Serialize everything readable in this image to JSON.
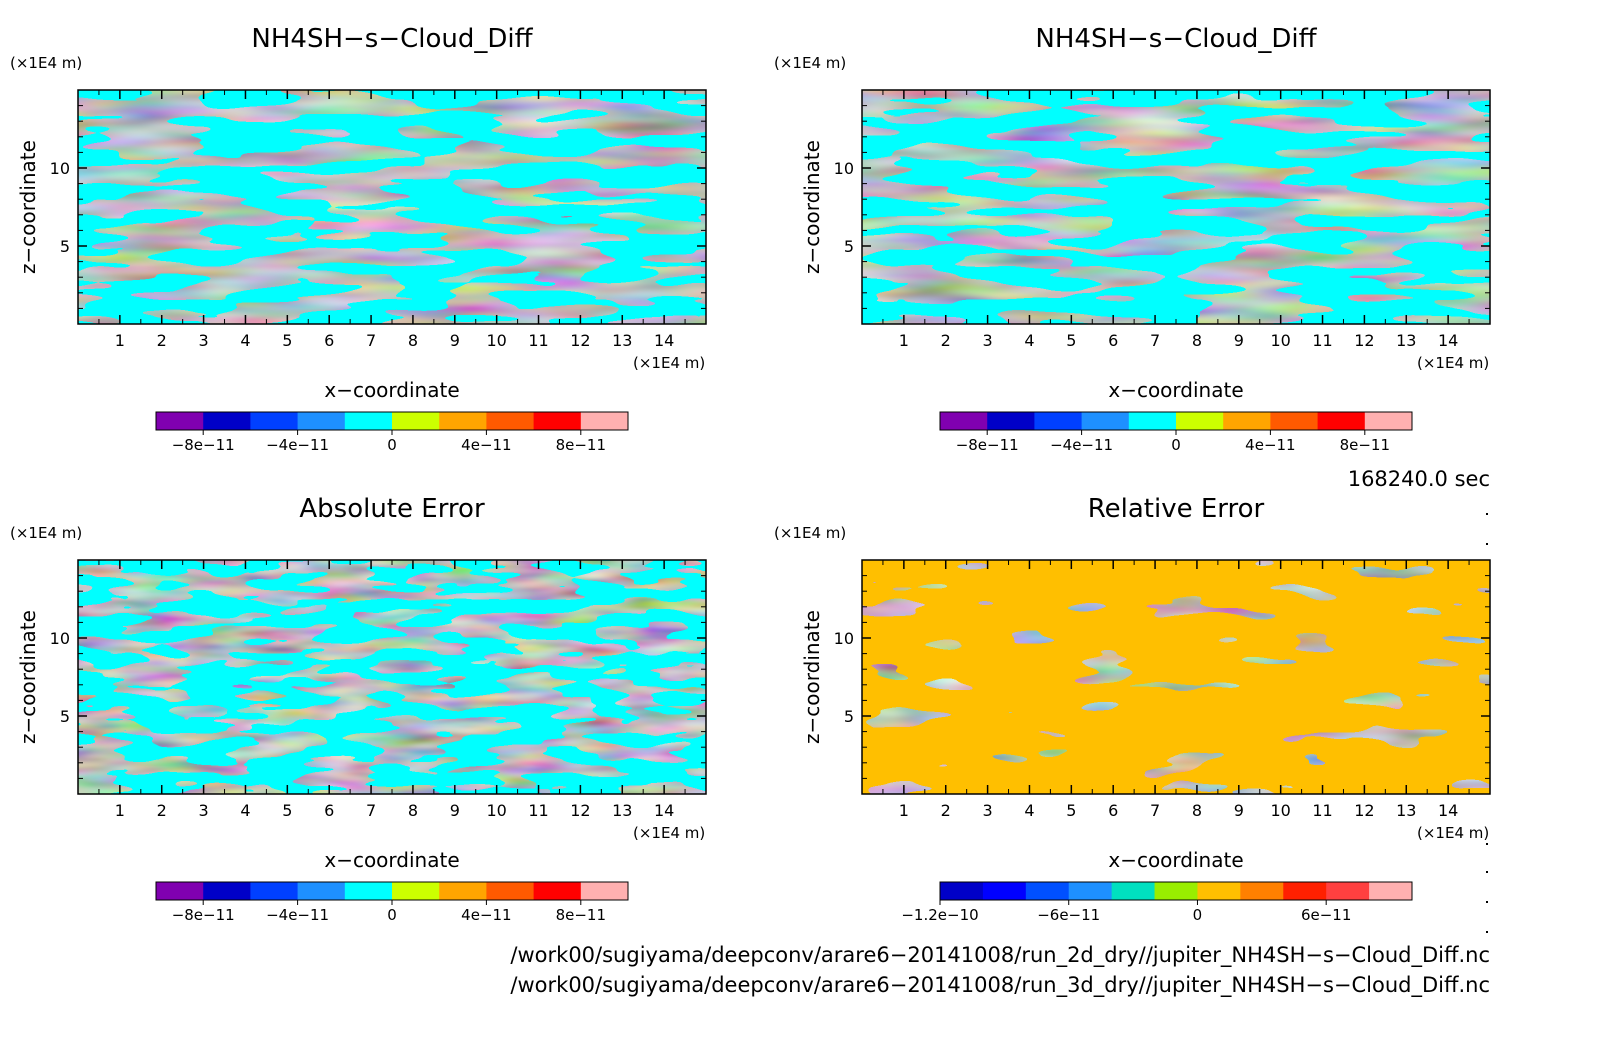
{
  "chart_data": [
    {
      "type": "heatmap",
      "title": "NH4SH−s−Cloud_Diff",
      "xlabel": "x−coordinate",
      "ylabel": "z−coordinate",
      "x_unit": "(×1E4 m)",
      "y_unit": "(×1E4 m)",
      "xlim": [
        0,
        15
      ],
      "ylim": [
        0,
        15
      ],
      "x_ticks": [
        1,
        2,
        3,
        4,
        5,
        6,
        7,
        8,
        9,
        10,
        11,
        12,
        13,
        14
      ],
      "y_ticks": [
        5,
        10
      ],
      "dominant_levels": [
        "#00ffff",
        "#ccff00"
      ],
      "colorbar": {
        "colors": [
          "#8000b0",
          "#0000c8",
          "#0040ff",
          "#1e90ff",
          "#00ffff",
          "#ccff00",
          "#ffa500",
          "#ff5a00",
          "#ff0000",
          "#ffb0b0"
        ],
        "labels": [
          "−8e−11",
          "−4e−11",
          "0",
          "4e−11",
          "8e−11"
        ],
        "label_positions": [
          1,
          3,
          5,
          7,
          9
        ]
      }
    },
    {
      "type": "heatmap",
      "title": "NH4SH−s−Cloud_Diff",
      "xlabel": "x−coordinate",
      "ylabel": "z−coordinate",
      "x_unit": "(×1E4 m)",
      "y_unit": "(×1E4 m)",
      "xlim": [
        0,
        15
      ],
      "ylim": [
        0,
        15
      ],
      "x_ticks": [
        1,
        2,
        3,
        4,
        5,
        6,
        7,
        8,
        9,
        10,
        11,
        12,
        13,
        14
      ],
      "y_ticks": [
        5,
        10
      ],
      "dominant_levels": [
        "#00ffff",
        "#ccff00"
      ],
      "colorbar": {
        "colors": [
          "#8000b0",
          "#0000c8",
          "#0040ff",
          "#1e90ff",
          "#00ffff",
          "#ccff00",
          "#ffa500",
          "#ff5a00",
          "#ff0000",
          "#ffb0b0"
        ],
        "labels": [
          "−8e−11",
          "−4e−11",
          "0",
          "4e−11",
          "8e−11"
        ],
        "label_positions": [
          1,
          3,
          5,
          7,
          9
        ]
      }
    },
    {
      "type": "heatmap",
      "title": "Absolute Error",
      "xlabel": "x−coordinate",
      "ylabel": "z−coordinate",
      "x_unit": "(×1E4 m)",
      "y_unit": "(×1E4 m)",
      "xlim": [
        0,
        15
      ],
      "ylim": [
        0,
        15
      ],
      "x_ticks": [
        1,
        2,
        3,
        4,
        5,
        6,
        7,
        8,
        9,
        10,
        11,
        12,
        13,
        14
      ],
      "y_ticks": [
        5,
        10
      ],
      "dominant_levels": [
        "#00ffff",
        "#ccff00"
      ],
      "colorbar": {
        "colors": [
          "#8000b0",
          "#0000c8",
          "#0040ff",
          "#1e90ff",
          "#00ffff",
          "#ccff00",
          "#ffa500",
          "#ff5a00",
          "#ff0000",
          "#ffb0b0"
        ],
        "labels": [
          "−8e−11",
          "−4e−11",
          "0",
          "4e−11",
          "8e−11"
        ],
        "label_positions": [
          1,
          3,
          5,
          7,
          9
        ]
      }
    },
    {
      "type": "heatmap",
      "title": "Relative Error",
      "xlabel": "x−coordinate",
      "ylabel": "z−coordinate",
      "x_unit": "(×1E4 m)",
      "y_unit": "(×1E4 m)",
      "xlim": [
        0,
        15
      ],
      "ylim": [
        0,
        15
      ],
      "x_ticks": [
        1,
        2,
        3,
        4,
        5,
        6,
        7,
        8,
        9,
        10,
        11,
        12,
        13,
        14
      ],
      "y_ticks": [
        5,
        10
      ],
      "dominant_levels": [
        "#ffbf00",
        "#99ee00"
      ],
      "colorbar": {
        "colors": [
          "#0000c8",
          "#0000ff",
          "#0050ff",
          "#1e90ff",
          "#00e0c0",
          "#99ee00",
          "#ffbf00",
          "#ff8000",
          "#ff2000",
          "#ff4040",
          "#ffb0b0"
        ],
        "labels": [
          "−1.2e−10",
          "−6e−11",
          "0",
          "6e−11"
        ],
        "label_positions": [
          0,
          3,
          6,
          9
        ]
      }
    }
  ],
  "time_label": "168240.0 sec",
  "footer": {
    "line1": "/work00/sugiyama/deepconv/arare6−20141008/run_2d_dry//jupiter_NH4SH−s−Cloud_Diff.nc",
    "line2": "/work00/sugiyama/deepconv/arare6−20141008/run_3d_dry//jupiter_NH4SH−s−Cloud_Diff.nc"
  }
}
